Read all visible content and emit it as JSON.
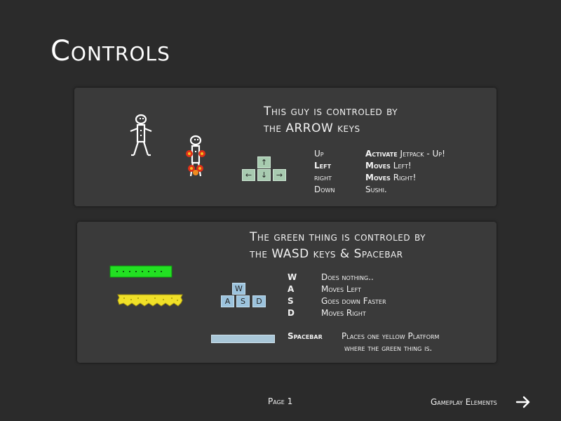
{
  "page_title": "Controls",
  "panel1": {
    "heading_line1": "This guy is controled by",
    "heading_line2": "the ARROW keys",
    "keys": {
      "up": "↑",
      "left": "←",
      "down": "↓",
      "right": "→"
    },
    "controls": [
      {
        "key": "Up",
        "desc": "Activate Jetpack - Up!",
        "key_bold": false,
        "desc_bold_word": "Activate",
        "desc_rest": " Jetpack - Up!"
      },
      {
        "key": "Left",
        "desc": "Moves Left!",
        "desc_bold_word": "Moves",
        "desc_rest": " Left!"
      },
      {
        "key": "right",
        "desc": "Moves Right!",
        "desc_bold_word": "Moves",
        "desc_rest": " Right!"
      },
      {
        "key": "Down",
        "desc": "Sushi.",
        "desc_bold_word": "",
        "desc_rest": "Sushi."
      }
    ]
  },
  "panel2": {
    "heading_line1": "The green thing is controled by",
    "heading_line2": "the WASD keys & Spacebar",
    "keys": {
      "w": "W",
      "a": "A",
      "s": "S",
      "d": "D"
    },
    "controls": [
      {
        "key": "W",
        "desc": "Does nothing.."
      },
      {
        "key": "A",
        "desc": "Moves Left"
      },
      {
        "key": "S",
        "desc": "Goes down Faster"
      },
      {
        "key": "D",
        "desc": "Moves Right"
      }
    ],
    "spacebar_key": "Spacebar",
    "spacebar_desc_line1": "Places one yellow Platform",
    "spacebar_desc_line2": "where the green thing is."
  },
  "footer": {
    "page_label": "Page 1",
    "next_label": "Gameplay Elements"
  },
  "colors": {
    "background": "#2b2b2b",
    "panel": "#3a3a3a",
    "green_thing": "#22e022",
    "yellow_platform": "#f0e028",
    "arrow_key": "#a8cbb0",
    "wasd_key": "#9cc3dd",
    "spacebar_key": "#a9c7d8"
  },
  "icons": [
    "robot-sprite",
    "robot-jetpack-sprite",
    "arrow-right-icon"
  ]
}
